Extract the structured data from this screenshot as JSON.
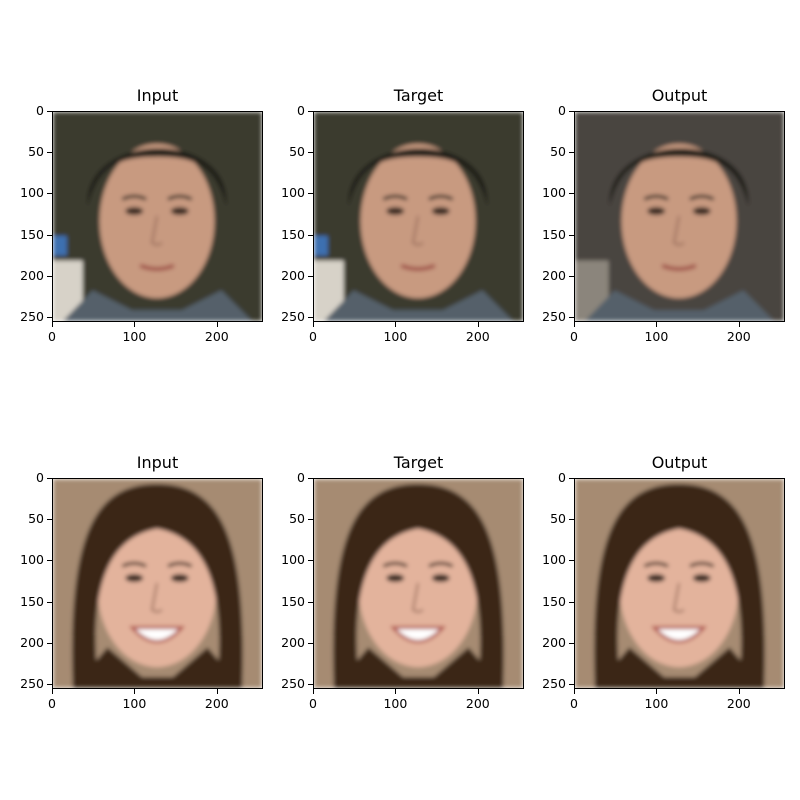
{
  "figure": {
    "rows": [
      {
        "panels": [
          {
            "title": "Input",
            "image": "blurred-face-man"
          },
          {
            "title": "Target",
            "image": "face-man"
          },
          {
            "title": "Output",
            "image": "reconstructed-face-man"
          }
        ]
      },
      {
        "panels": [
          {
            "title": "Input",
            "image": "blurred-face-woman"
          },
          {
            "title": "Target",
            "image": "face-woman"
          },
          {
            "title": "Output",
            "image": "reconstructed-face-woman"
          }
        ]
      }
    ],
    "y_ticks": [
      "0",
      "50",
      "100",
      "150",
      "200",
      "250"
    ],
    "x_ticks": [
      "0",
      "100",
      "200"
    ]
  }
}
